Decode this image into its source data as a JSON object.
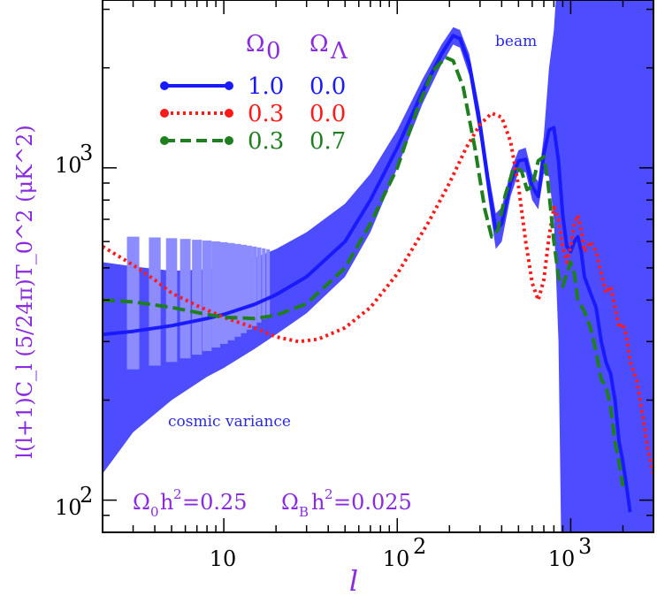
{
  "chart_data": {
    "type": "line",
    "xlabel": "l",
    "ylabel": "l(l+1)C_l (5/24π)T_0^2  (μK^2)",
    "xscale": "log",
    "yscale": "log",
    "xlim": [
      2,
      3000
    ],
    "ylim": [
      80,
      3200
    ],
    "x_ticks": [
      {
        "value": 10,
        "label": "10"
      },
      {
        "value": 100,
        "label": "10",
        "exp": "2"
      },
      {
        "value": 1000,
        "label": "10",
        "exp": "3"
      }
    ],
    "y_ticks": [
      {
        "value": 100,
        "label": "10",
        "exp": "2"
      },
      {
        "value": 1000,
        "label": "10",
        "exp": "3"
      }
    ],
    "legend": {
      "header": {
        "omega0": "Ω",
        "omega0_sub": "0",
        "omegaL": "Ω",
        "omegaL_sub": "Λ"
      },
      "entries": [
        {
          "omega0": "1.0",
          "omegaL": "0.0",
          "color": "#1a1aff",
          "style": "solid"
        },
        {
          "omega0": "0.3",
          "omegaL": "0.0",
          "color": "#ff1a1a",
          "style": "dotted"
        },
        {
          "omega0": "0.3",
          "omegaL": "0.7",
          "color": "#1f7f1f",
          "style": "dashed"
        }
      ]
    },
    "annotations": {
      "beam": "beam",
      "cosmic_variance": "cosmic variance",
      "params_a": "Ω",
      "params_a_sub": "0",
      "params_a_rest": "h",
      "params_a_sup": "2",
      "params_a_val": "=0.25",
      "params_b": "Ω",
      "params_b_sub": "B",
      "params_b_rest": "h",
      "params_b_sup": "2",
      "params_b_val": "=0.025"
    },
    "colors": {
      "band": "#4d4dff",
      "band_light": "#8c8cff",
      "purple": "#8a2be2"
    },
    "series": [
      {
        "name": "Ω0=1.0 ΩΛ=0.0",
        "color": "#1a1aff",
        "style": "solid",
        "points": [
          [
            2,
            315
          ],
          [
            3,
            322
          ],
          [
            5,
            335
          ],
          [
            8,
            352
          ],
          [
            10,
            362
          ],
          [
            15,
            388
          ],
          [
            20,
            415
          ],
          [
            30,
            470
          ],
          [
            50,
            600
          ],
          [
            70,
            800
          ],
          [
            100,
            1150
          ],
          [
            140,
            1700
          ],
          [
            180,
            2200
          ],
          [
            210,
            2500
          ],
          [
            230,
            2450
          ],
          [
            260,
            2050
          ],
          [
            300,
            1350
          ],
          [
            340,
            850
          ],
          [
            370,
            650
          ],
          [
            400,
            680
          ],
          [
            450,
            900
          ],
          [
            500,
            1050
          ],
          [
            550,
            1060
          ],
          [
            600,
            880
          ],
          [
            650,
            820
          ],
          [
            700,
            1100
          ],
          [
            750,
            1300
          ],
          [
            800,
            1320
          ],
          [
            850,
            1050
          ],
          [
            900,
            720
          ],
          [
            950,
            580
          ],
          [
            1000,
            560
          ],
          [
            1050,
            600
          ],
          [
            1100,
            620
          ],
          [
            1150,
            560
          ],
          [
            1200,
            470
          ],
          [
            1300,
            420
          ],
          [
            1400,
            380
          ],
          [
            1500,
            300
          ],
          [
            1600,
            260
          ],
          [
            1700,
            240
          ],
          [
            1800,
            200
          ],
          [
            1900,
            150
          ],
          [
            2000,
            130
          ],
          [
            2100,
            110
          ],
          [
            2200,
            92
          ]
        ]
      },
      {
        "name": "Ω0=0.3 ΩΛ=0.0",
        "color": "#ff1a1a",
        "style": "dotted",
        "points": [
          [
            2,
            580
          ],
          [
            3,
            510
          ],
          [
            4,
            460
          ],
          [
            5,
            420
          ],
          [
            7,
            385
          ],
          [
            10,
            355
          ],
          [
            15,
            330
          ],
          [
            20,
            310
          ],
          [
            27,
            300
          ],
          [
            35,
            305
          ],
          [
            50,
            330
          ],
          [
            70,
            380
          ],
          [
            100,
            480
          ],
          [
            150,
            680
          ],
          [
            200,
            900
          ],
          [
            250,
            1150
          ],
          [
            300,
            1350
          ],
          [
            350,
            1460
          ],
          [
            400,
            1420
          ],
          [
            450,
            1200
          ],
          [
            500,
            880
          ],
          [
            550,
            600
          ],
          [
            600,
            450
          ],
          [
            650,
            400
          ],
          [
            700,
            460
          ],
          [
            750,
            620
          ],
          [
            800,
            760
          ],
          [
            850,
            700
          ],
          [
            900,
            580
          ],
          [
            950,
            520
          ],
          [
            1000,
            580
          ],
          [
            1050,
            680
          ],
          [
            1100,
            720
          ],
          [
            1150,
            650
          ],
          [
            1200,
            560
          ],
          [
            1300,
            600
          ],
          [
            1400,
            560
          ],
          [
            1500,
            480
          ],
          [
            1600,
            420
          ],
          [
            1700,
            440
          ],
          [
            1800,
            380
          ],
          [
            1900,
            330
          ],
          [
            2000,
            340
          ],
          [
            2100,
            310
          ],
          [
            2200,
            260
          ],
          [
            2400,
            230
          ],
          [
            2600,
            180
          ],
          [
            2800,
            140
          ],
          [
            3000,
            120
          ]
        ]
      },
      {
        "name": "Ω0=0.3 ΩΛ=0.7",
        "color": "#1f7f1f",
        "style": "dashed",
        "points": [
          [
            2,
            400
          ],
          [
            3,
            395
          ],
          [
            5,
            380
          ],
          [
            8,
            362
          ],
          [
            10,
            355
          ],
          [
            15,
            352
          ],
          [
            20,
            360
          ],
          [
            30,
            390
          ],
          [
            50,
            500
          ],
          [
            70,
            680
          ],
          [
            100,
            1000
          ],
          [
            130,
            1500
          ],
          [
            160,
            1950
          ],
          [
            190,
            2150
          ],
          [
            210,
            2100
          ],
          [
            240,
            1750
          ],
          [
            280,
            1150
          ],
          [
            320,
            750
          ],
          [
            350,
            620
          ],
          [
            380,
            650
          ],
          [
            420,
            830
          ],
          [
            470,
            1000
          ],
          [
            520,
            980
          ],
          [
            560,
            860
          ],
          [
            600,
            880
          ],
          [
            650,
            1050
          ],
          [
            700,
            1080
          ],
          [
            740,
            900
          ],
          [
            800,
            600
          ],
          [
            850,
            470
          ],
          [
            900,
            440
          ],
          [
            950,
            480
          ],
          [
            1000,
            520
          ],
          [
            1050,
            480
          ],
          [
            1100,
            400
          ],
          [
            1200,
            370
          ],
          [
            1300,
            330
          ],
          [
            1400,
            280
          ],
          [
            1500,
            230
          ],
          [
            1600,
            220
          ],
          [
            1700,
            190
          ],
          [
            1800,
            150
          ],
          [
            1900,
            130
          ],
          [
            2000,
            110
          ]
        ]
      }
    ],
    "band_error": {
      "upper": [
        [
          2,
          520
        ],
        [
          3,
          505
        ],
        [
          5,
          490
        ],
        [
          8,
          495
        ],
        [
          10,
          505
        ],
        [
          15,
          535
        ],
        [
          20,
          570
        ],
        [
          30,
          640
        ],
        [
          50,
          780
        ],
        [
          70,
          960
        ],
        [
          100,
          1300
        ],
        [
          140,
          1850
        ],
        [
          180,
          2350
        ],
        [
          210,
          2650
        ],
        [
          230,
          2600
        ],
        [
          260,
          2200
        ],
        [
          300,
          1480
        ],
        [
          340,
          940
        ],
        [
          370,
          730
        ],
        [
          400,
          760
        ],
        [
          450,
          980
        ],
        [
          500,
          1130
        ],
        [
          550,
          1150
        ],
        [
          600,
          960
        ],
        [
          650,
          910
        ],
        [
          700,
          1250
        ],
        [
          750,
          2000
        ],
        [
          800,
          2600
        ],
        [
          820,
          3200
        ]
      ],
      "lower": [
        [
          2,
          120
        ],
        [
          3,
          160
        ],
        [
          5,
          200
        ],
        [
          8,
          235
        ],
        [
          10,
          250
        ],
        [
          15,
          285
        ],
        [
          20,
          315
        ],
        [
          30,
          365
        ],
        [
          50,
          470
        ],
        [
          70,
          640
        ],
        [
          100,
          1000
        ],
        [
          140,
          1560
        ],
        [
          180,
          2050
        ],
        [
          210,
          2350
        ],
        [
          230,
          2300
        ],
        [
          260,
          1900
        ],
        [
          300,
          1230
        ],
        [
          340,
          770
        ],
        [
          370,
          570
        ],
        [
          400,
          600
        ],
        [
          450,
          820
        ],
        [
          500,
          970
        ],
        [
          550,
          970
        ],
        [
          600,
          800
        ],
        [
          650,
          750
        ],
        [
          700,
          960
        ],
        [
          750,
          940
        ],
        [
          800,
          700
        ],
        [
          850,
          300
        ],
        [
          880,
          80
        ]
      ]
    }
  }
}
